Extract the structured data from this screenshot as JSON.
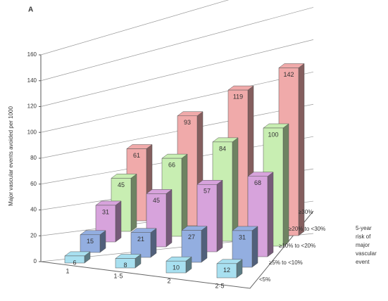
{
  "chart_data": {
    "type": "bar3d",
    "panel_label": "A",
    "y_label": "Major vascular events avoided per 1000",
    "depth_title": [
      "5-year",
      "risk of",
      "major",
      "vascular",
      "event"
    ],
    "categories": [
      "1",
      "1·5",
      "2",
      "2·5"
    ],
    "series": [
      {
        "name": "<5%",
        "color": "#a8e0f0",
        "values": [
          6,
          8,
          10,
          12
        ]
      },
      {
        "name": "≥5% to <10%",
        "color": "#93aee0",
        "values": [
          15,
          21,
          27,
          31
        ]
      },
      {
        "name": "≥10% to <20%",
        "color": "#d7a3dc",
        "values": [
          31,
          45,
          57,
          68
        ]
      },
      {
        "name": "≥20% to <30%",
        "color": "#c8eeb2",
        "values": [
          45,
          66,
          84,
          100
        ]
      },
      {
        "name": "≥30%",
        "color": "#f0aaaa",
        "values": [
          61,
          93,
          119,
          142
        ]
      }
    ],
    "ylim": [
      0,
      160
    ],
    "yticks": [
      0,
      20,
      40,
      60,
      80,
      100,
      120,
      140,
      160
    ],
    "grid": true
  }
}
